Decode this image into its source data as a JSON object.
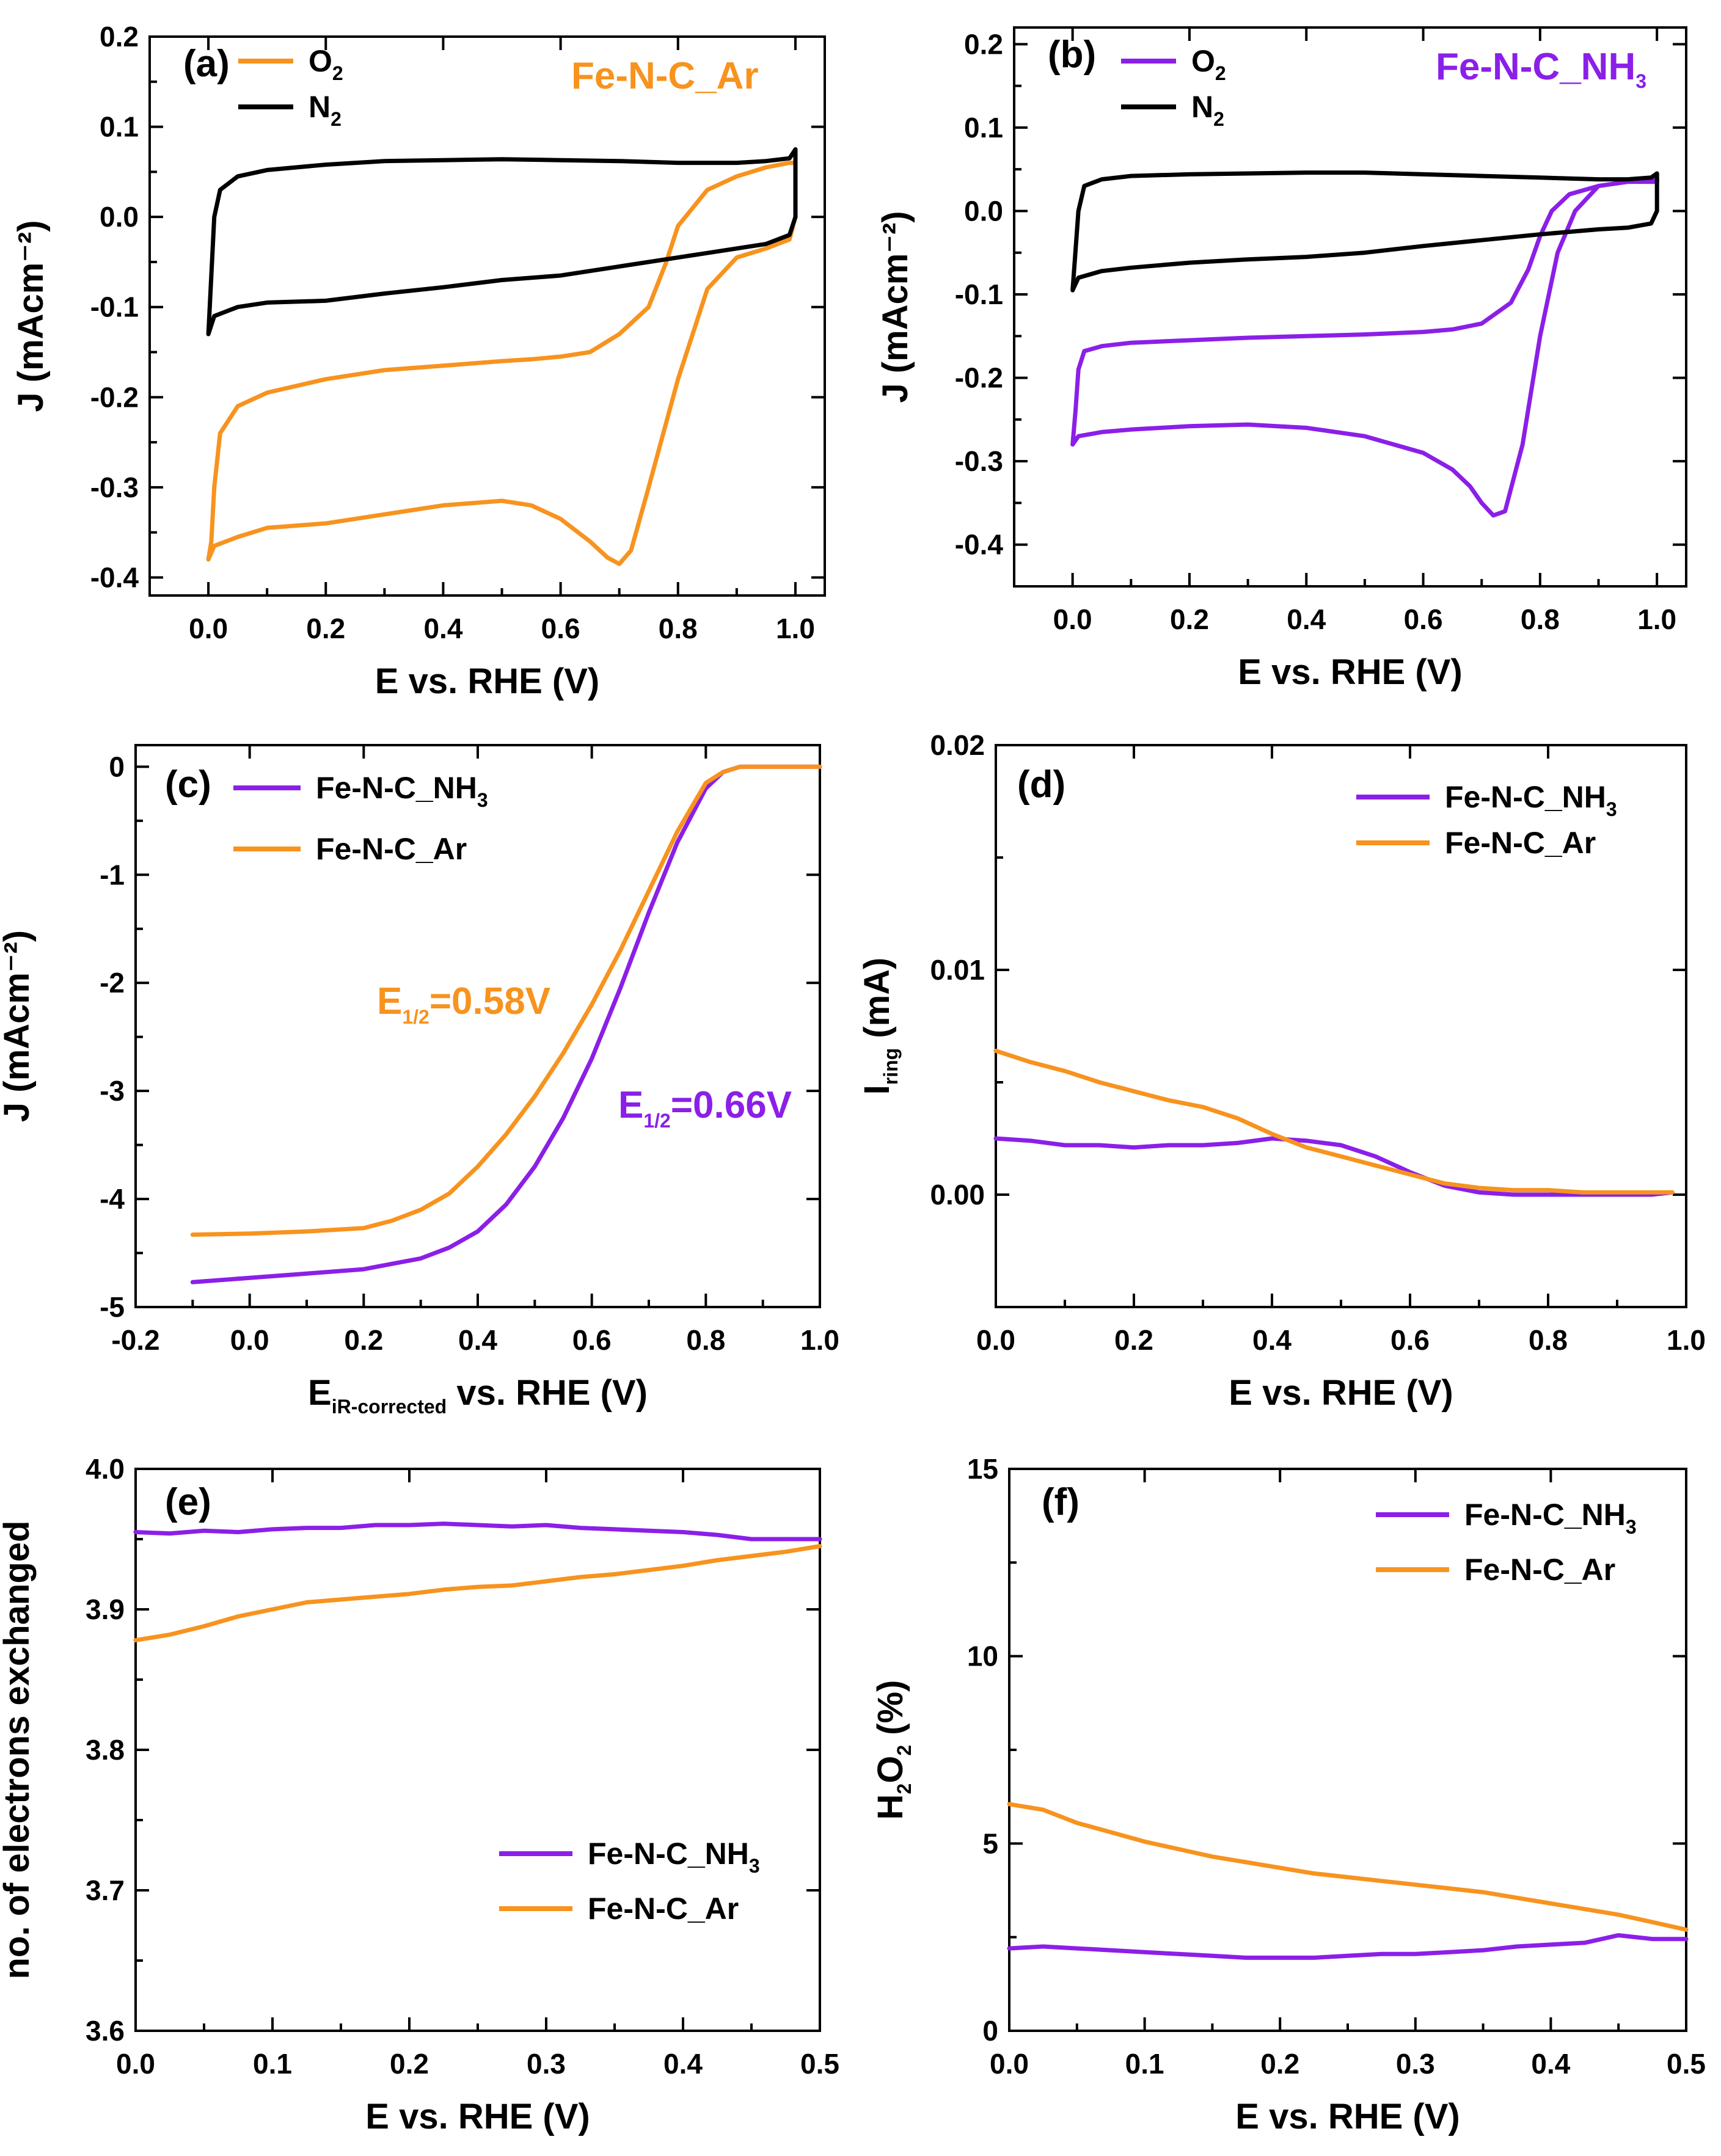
{
  "colors": {
    "orange": "#F7931E",
    "purple": "#8B1FE8",
    "black": "#000000"
  },
  "chart_data": [
    {
      "id": "a",
      "panel_label": "(a)",
      "type": "line",
      "xlabel": "E vs. RHE (V)",
      "ylabel": "J (mAcm⁻²)",
      "xlim": [
        -0.1,
        1.05
      ],
      "ylim": [
        -0.42,
        0.2
      ],
      "xticks": [
        0.0,
        0.2,
        0.4,
        0.6,
        0.8,
        1.0
      ],
      "xtick_labels": [
        "0.0",
        "0.2",
        "0.4",
        "0.6",
        "0.8",
        "1.0"
      ],
      "yticks": [
        -0.4,
        -0.3,
        -0.2,
        -0.1,
        0.0,
        0.1,
        0.2
      ],
      "ytick_labels": [
        "-0.4",
        "-0.3",
        "-0.2",
        "-0.1",
        "0.0",
        "0.1",
        "0.2"
      ],
      "annotation": {
        "text": "Fe-N-C_Ar",
        "color": "#F7931E"
      },
      "legend": [
        {
          "label": "O",
          "sub": "2",
          "color": "#F7931E"
        },
        {
          "label": "N",
          "sub": "2",
          "color": "#000000"
        }
      ],
      "series": [
        {
          "name": "O2",
          "color": "#F7931E",
          "x": [
            0.0,
            0.01,
            0.05,
            0.1,
            0.2,
            0.3,
            0.4,
            0.5,
            0.55,
            0.6,
            0.65,
            0.68,
            0.7,
            0.72,
            0.75,
            0.8,
            0.85,
            0.9,
            0.95,
            0.99,
            1.0,
            1.0,
            0.99,
            0.95,
            0.9,
            0.85,
            0.8,
            0.78,
            0.75,
            0.7,
            0.65,
            0.6,
            0.55,
            0.5,
            0.4,
            0.3,
            0.2,
            0.1,
            0.05,
            0.02,
            0.01,
            0.005,
            0.0
          ],
          "y": [
            -0.38,
            -0.365,
            -0.355,
            -0.345,
            -0.34,
            -0.33,
            -0.32,
            -0.315,
            -0.32,
            -0.335,
            -0.36,
            -0.378,
            -0.385,
            -0.37,
            -0.3,
            -0.18,
            -0.08,
            -0.045,
            -0.035,
            -0.025,
            0.0,
            0.06,
            0.06,
            0.055,
            0.045,
            0.03,
            -0.01,
            -0.05,
            -0.1,
            -0.13,
            -0.15,
            -0.155,
            -0.158,
            -0.16,
            -0.165,
            -0.17,
            -0.18,
            -0.195,
            -0.21,
            -0.24,
            -0.3,
            -0.36,
            -0.38
          ]
        },
        {
          "name": "N2",
          "color": "#000000",
          "x": [
            0.0,
            0.01,
            0.05,
            0.1,
            0.2,
            0.3,
            0.4,
            0.5,
            0.6,
            0.7,
            0.8,
            0.9,
            0.95,
            0.99,
            1.0,
            1.0,
            0.99,
            0.95,
            0.9,
            0.8,
            0.7,
            0.6,
            0.5,
            0.4,
            0.3,
            0.2,
            0.1,
            0.05,
            0.02,
            0.01,
            0.0
          ],
          "y": [
            -0.13,
            -0.11,
            -0.1,
            -0.095,
            -0.093,
            -0.085,
            -0.078,
            -0.07,
            -0.065,
            -0.055,
            -0.045,
            -0.035,
            -0.03,
            -0.02,
            0.0,
            0.075,
            0.065,
            0.062,
            0.06,
            0.06,
            0.062,
            0.063,
            0.064,
            0.063,
            0.062,
            0.058,
            0.052,
            0.045,
            0.03,
            0.0,
            -0.13
          ]
        }
      ]
    },
    {
      "id": "b",
      "panel_label": "(b)",
      "type": "line",
      "xlabel": "E vs. RHE (V)",
      "ylabel": "J (mAcm⁻²)",
      "xlim": [
        -0.1,
        1.05
      ],
      "ylim": [
        -0.45,
        0.22
      ],
      "xticks": [
        0.0,
        0.2,
        0.4,
        0.6,
        0.8,
        1.0
      ],
      "xtick_labels": [
        "0.0",
        "0.2",
        "0.4",
        "0.6",
        "0.8",
        "1.0"
      ],
      "yticks": [
        -0.4,
        -0.3,
        -0.2,
        -0.1,
        0.0,
        0.1,
        0.2
      ],
      "ytick_labels": [
        "-0.4",
        "-0.3",
        "-0.2",
        "-0.1",
        "0.0",
        "0.1",
        "0.2"
      ],
      "annotation": {
        "text": "Fe-N-C_NH",
        "sub": "3",
        "color": "#8B1FE8"
      },
      "legend": [
        {
          "label": "O",
          "sub": "2",
          "color": "#8B1FE8"
        },
        {
          "label": "N",
          "sub": "2",
          "color": "#000000"
        }
      ],
      "series": [
        {
          "name": "O2",
          "color": "#8B1FE8",
          "x": [
            0.0,
            0.01,
            0.05,
            0.1,
            0.2,
            0.3,
            0.4,
            0.5,
            0.6,
            0.65,
            0.68,
            0.7,
            0.72,
            0.74,
            0.77,
            0.8,
            0.83,
            0.86,
            0.9,
            0.95,
            0.99,
            1.0,
            1.0,
            0.99,
            0.95,
            0.9,
            0.85,
            0.82,
            0.8,
            0.78,
            0.75,
            0.7,
            0.65,
            0.6,
            0.5,
            0.4,
            0.3,
            0.2,
            0.1,
            0.05,
            0.02,
            0.01,
            0.005,
            0.0
          ],
          "y": [
            -0.28,
            -0.27,
            -0.265,
            -0.262,
            -0.258,
            -0.256,
            -0.26,
            -0.27,
            -0.29,
            -0.31,
            -0.33,
            -0.35,
            -0.365,
            -0.36,
            -0.28,
            -0.15,
            -0.05,
            0.0,
            0.03,
            0.035,
            0.035,
            0.04,
            0.035,
            0.035,
            0.035,
            0.03,
            0.02,
            0.0,
            -0.03,
            -0.07,
            -0.11,
            -0.135,
            -0.142,
            -0.145,
            -0.148,
            -0.15,
            -0.152,
            -0.155,
            -0.158,
            -0.162,
            -0.168,
            -0.19,
            -0.24,
            -0.28
          ]
        },
        {
          "name": "N2",
          "color": "#000000",
          "x": [
            0.0,
            0.01,
            0.05,
            0.1,
            0.2,
            0.3,
            0.4,
            0.5,
            0.6,
            0.7,
            0.8,
            0.9,
            0.95,
            0.99,
            1.0,
            1.0,
            0.99,
            0.95,
            0.9,
            0.8,
            0.7,
            0.6,
            0.5,
            0.4,
            0.3,
            0.2,
            0.1,
            0.05,
            0.02,
            0.01,
            0.0
          ],
          "y": [
            -0.095,
            -0.08,
            -0.072,
            -0.068,
            -0.062,
            -0.058,
            -0.055,
            -0.05,
            -0.042,
            -0.035,
            -0.028,
            -0.022,
            -0.02,
            -0.015,
            0.0,
            0.045,
            0.04,
            0.038,
            0.038,
            0.04,
            0.042,
            0.044,
            0.046,
            0.046,
            0.045,
            0.044,
            0.042,
            0.038,
            0.03,
            0.0,
            -0.095
          ]
        }
      ]
    },
    {
      "id": "c",
      "panel_label": "(c)",
      "type": "line",
      "xlabel": "E",
      "xlabel_sub": "iR-corrected",
      "xlabel_rest": " vs. RHE (V)",
      "ylabel": "J (mAcm⁻²)",
      "xlim": [
        -0.2,
        1.0
      ],
      "ylim": [
        -5.0,
        0.2
      ],
      "xticks": [
        -0.2,
        0.0,
        0.2,
        0.4,
        0.6,
        0.8,
        1.0
      ],
      "xtick_labels": [
        "-0.2",
        "0.0",
        "0.2",
        "0.4",
        "0.6",
        "0.8",
        "1.0"
      ],
      "yticks": [
        -5,
        -4,
        -3,
        -2,
        -1,
        0
      ],
      "ytick_labels": [
        "-5",
        "-4",
        "-3",
        "-2",
        "-1",
        "0"
      ],
      "annotations": [
        {
          "text": "E",
          "sub": "1/2",
          "rest": "=0.58V",
          "color": "#F7931E"
        },
        {
          "text": "E",
          "sub": "1/2",
          "rest": "=0.66V",
          "color": "#8B1FE8"
        }
      ],
      "legend": [
        {
          "label": "Fe-N-C_NH",
          "sub": "3",
          "color": "#8B1FE8"
        },
        {
          "label": "Fe-N-C_Ar",
          "sub": "",
          "color": "#F7931E"
        }
      ],
      "series": [
        {
          "name": "Fe-N-C_NH3",
          "color": "#8B1FE8",
          "x": [
            -0.1,
            0.0,
            0.1,
            0.2,
            0.25,
            0.3,
            0.35,
            0.4,
            0.45,
            0.5,
            0.55,
            0.6,
            0.65,
            0.7,
            0.75,
            0.8,
            0.83,
            0.86,
            0.9,
            0.95,
            1.0
          ],
          "y": [
            -4.77,
            -4.73,
            -4.69,
            -4.65,
            -4.6,
            -4.55,
            -4.45,
            -4.3,
            -4.05,
            -3.7,
            -3.25,
            -2.7,
            -2.05,
            -1.35,
            -0.7,
            -0.2,
            -0.05,
            0.0,
            0.0,
            0.0,
            0.0
          ]
        },
        {
          "name": "Fe-N-C_Ar",
          "color": "#F7931E",
          "x": [
            -0.1,
            0.0,
            0.1,
            0.2,
            0.25,
            0.3,
            0.35,
            0.4,
            0.45,
            0.5,
            0.55,
            0.6,
            0.65,
            0.7,
            0.75,
            0.8,
            0.83,
            0.86,
            0.9,
            0.95,
            1.0
          ],
          "y": [
            -4.33,
            -4.32,
            -4.3,
            -4.27,
            -4.2,
            -4.1,
            -3.95,
            -3.7,
            -3.4,
            -3.05,
            -2.65,
            -2.2,
            -1.7,
            -1.15,
            -0.6,
            -0.15,
            -0.05,
            0.0,
            0.0,
            0.0,
            0.0
          ]
        }
      ]
    },
    {
      "id": "d",
      "panel_label": "(d)",
      "type": "line",
      "xlabel": "E vs. RHE (V)",
      "ylabel": "I",
      "ylabel_sub": "ring",
      "ylabel_rest": " (mA)",
      "xlim": [
        0.0,
        1.0
      ],
      "ylim": [
        -0.005,
        0.02
      ],
      "xticks": [
        0.0,
        0.2,
        0.4,
        0.6,
        0.8,
        1.0
      ],
      "xtick_labels": [
        "0.0",
        "0.2",
        "0.4",
        "0.6",
        "0.8",
        "1.0"
      ],
      "yticks": [
        0.0,
        0.01,
        0.02
      ],
      "ytick_labels": [
        "0.00",
        "0.01",
        "0.02"
      ],
      "legend": [
        {
          "label": "Fe-N-C_NH",
          "sub": "3",
          "color": "#8B1FE8"
        },
        {
          "label": "Fe-N-C_Ar",
          "sub": "",
          "color": "#F7931E"
        }
      ],
      "series": [
        {
          "name": "Fe-N-C_NH3",
          "color": "#8B1FE8",
          "x": [
            0.0,
            0.05,
            0.1,
            0.15,
            0.2,
            0.25,
            0.3,
            0.35,
            0.4,
            0.45,
            0.5,
            0.55,
            0.6,
            0.65,
            0.7,
            0.75,
            0.8,
            0.85,
            0.9,
            0.95,
            0.98
          ],
          "y": [
            0.0025,
            0.0024,
            0.0022,
            0.0022,
            0.0021,
            0.0022,
            0.0022,
            0.0023,
            0.0025,
            0.0024,
            0.0022,
            0.0017,
            0.001,
            0.0004,
            0.0001,
            0.0,
            0.0,
            0.0,
            0.0,
            0.0,
            0.0001
          ]
        },
        {
          "name": "Fe-N-C_Ar",
          "color": "#F7931E",
          "x": [
            0.0,
            0.05,
            0.1,
            0.15,
            0.2,
            0.25,
            0.3,
            0.35,
            0.4,
            0.45,
            0.5,
            0.55,
            0.6,
            0.65,
            0.7,
            0.75,
            0.8,
            0.85,
            0.9,
            0.95,
            0.98
          ],
          "y": [
            0.0064,
            0.0059,
            0.0055,
            0.005,
            0.0046,
            0.0042,
            0.0039,
            0.0034,
            0.0027,
            0.0021,
            0.0017,
            0.0013,
            0.0009,
            0.0005,
            0.0003,
            0.0002,
            0.0002,
            0.0001,
            0.0001,
            0.0001,
            0.0001
          ]
        }
      ]
    },
    {
      "id": "e",
      "panel_label": "(e)",
      "type": "line",
      "xlabel": "E vs. RHE (V)",
      "ylabel": "no. of electrons exchanged",
      "xlim": [
        0.0,
        0.5
      ],
      "ylim": [
        3.6,
        4.0
      ],
      "xticks": [
        0.0,
        0.1,
        0.2,
        0.3,
        0.4,
        0.5
      ],
      "xtick_labels": [
        "0.0",
        "0.1",
        "0.2",
        "0.3",
        "0.4",
        "0.5"
      ],
      "yticks": [
        3.6,
        3.7,
        3.8,
        3.9,
        4.0
      ],
      "ytick_labels": [
        "3.6",
        "3.7",
        "3.8",
        "3.9",
        "4.0"
      ],
      "legend": [
        {
          "label": "Fe-N-C_NH",
          "sub": "3",
          "color": "#8B1FE8"
        },
        {
          "label": "Fe-N-C_Ar",
          "sub": "",
          "color": "#F7931E"
        }
      ],
      "series": [
        {
          "name": "Fe-N-C_NH3",
          "color": "#8B1FE8",
          "x": [
            0.0,
            0.025,
            0.05,
            0.075,
            0.1,
            0.125,
            0.15,
            0.175,
            0.2,
            0.225,
            0.25,
            0.275,
            0.3,
            0.325,
            0.35,
            0.375,
            0.4,
            0.425,
            0.45,
            0.475,
            0.5
          ],
          "y": [
            3.955,
            3.954,
            3.956,
            3.955,
            3.957,
            3.958,
            3.958,
            3.96,
            3.96,
            3.961,
            3.96,
            3.959,
            3.96,
            3.958,
            3.957,
            3.956,
            3.955,
            3.953,
            3.95,
            3.95,
            3.95
          ]
        },
        {
          "name": "Fe-N-C_Ar",
          "color": "#F7931E",
          "x": [
            0.0,
            0.025,
            0.05,
            0.075,
            0.1,
            0.125,
            0.15,
            0.175,
            0.2,
            0.225,
            0.25,
            0.275,
            0.3,
            0.325,
            0.35,
            0.375,
            0.4,
            0.425,
            0.45,
            0.475,
            0.5
          ],
          "y": [
            3.878,
            3.882,
            3.888,
            3.895,
            3.9,
            3.905,
            3.907,
            3.909,
            3.911,
            3.914,
            3.916,
            3.917,
            3.92,
            3.923,
            3.925,
            3.928,
            3.931,
            3.935,
            3.938,
            3.941,
            3.945
          ]
        }
      ]
    },
    {
      "id": "f",
      "panel_label": "(f)",
      "type": "line",
      "xlabel": "E vs. RHE (V)",
      "ylabel": "H",
      "ylabel_sub": "2",
      "ylabel_mid": "O",
      "ylabel_sub2": "2",
      "ylabel_rest": " (%)",
      "xlim": [
        0.0,
        0.5
      ],
      "ylim": [
        0,
        15
      ],
      "xticks": [
        0.0,
        0.1,
        0.2,
        0.3,
        0.4,
        0.5
      ],
      "xtick_labels": [
        "0.0",
        "0.1",
        "0.2",
        "0.3",
        "0.4",
        "0.5"
      ],
      "yticks": [
        0,
        5,
        10,
        15
      ],
      "ytick_labels": [
        "0",
        "5",
        "10",
        "15"
      ],
      "legend": [
        {
          "label": "Fe-N-C_NH",
          "sub": "3",
          "color": "#8B1FE8"
        },
        {
          "label": "Fe-N-C_Ar",
          "sub": "",
          "color": "#F7931E"
        }
      ],
      "series": [
        {
          "name": "Fe-N-C_NH3",
          "color": "#8B1FE8",
          "x": [
            0.0,
            0.025,
            0.05,
            0.075,
            0.1,
            0.125,
            0.15,
            0.175,
            0.2,
            0.225,
            0.25,
            0.275,
            0.3,
            0.325,
            0.35,
            0.375,
            0.4,
            0.425,
            0.45,
            0.475,
            0.5
          ],
          "y": [
            2.2,
            2.25,
            2.2,
            2.15,
            2.1,
            2.05,
            2.0,
            1.95,
            1.95,
            1.95,
            2.0,
            2.05,
            2.05,
            2.1,
            2.15,
            2.25,
            2.3,
            2.35,
            2.55,
            2.45,
            2.45
          ]
        },
        {
          "name": "Fe-N-C_Ar",
          "color": "#F7931E",
          "x": [
            0.0,
            0.025,
            0.05,
            0.075,
            0.1,
            0.125,
            0.15,
            0.175,
            0.2,
            0.225,
            0.25,
            0.275,
            0.3,
            0.325,
            0.35,
            0.375,
            0.4,
            0.425,
            0.45,
            0.475,
            0.5
          ],
          "y": [
            6.05,
            5.9,
            5.55,
            5.3,
            5.05,
            4.85,
            4.65,
            4.5,
            4.35,
            4.2,
            4.1,
            4.0,
            3.9,
            3.8,
            3.7,
            3.55,
            3.4,
            3.25,
            3.1,
            2.9,
            2.7
          ]
        }
      ]
    }
  ]
}
